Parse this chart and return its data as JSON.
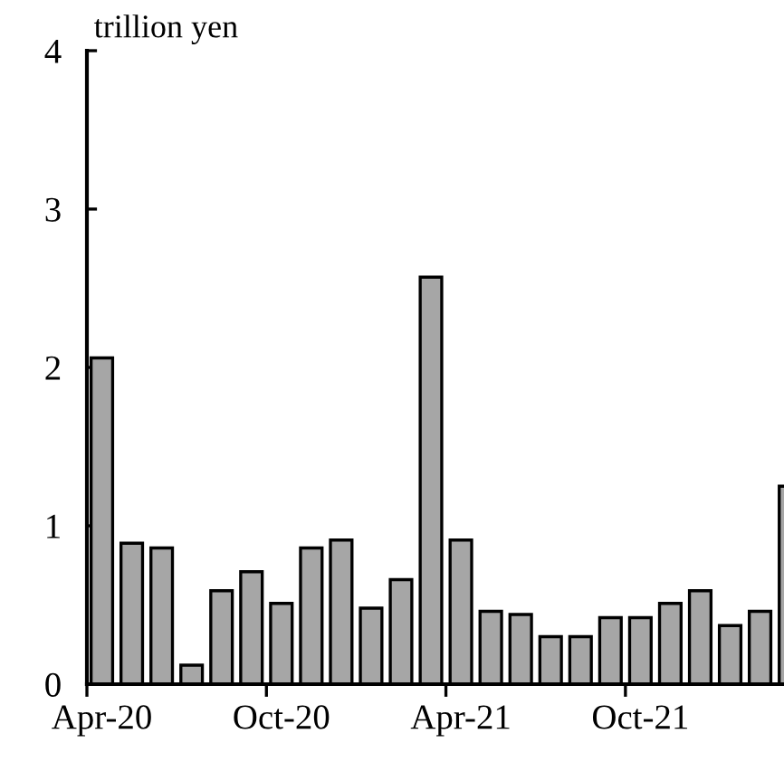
{
  "chart_data": {
    "type": "bar",
    "ylabel": "trillion yen",
    "categories": [
      "Apr-20",
      null,
      null,
      null,
      null,
      null,
      "Oct-20",
      null,
      null,
      null,
      null,
      null,
      "Apr-21",
      null,
      null,
      null,
      null,
      null,
      "Oct-21",
      null,
      null,
      null,
      null,
      null
    ],
    "values": [
      2.06,
      0.89,
      0.86,
      0.12,
      0.59,
      0.71,
      0.51,
      0.86,
      0.91,
      0.48,
      0.66,
      2.57,
      0.91,
      0.46,
      0.44,
      0.3,
      0.3,
      0.42,
      0.42,
      0.51,
      0.59,
      0.37,
      0.46,
      1.25
    ],
    "color": "#a6a6a6",
    "ylim": [
      0,
      4
    ],
    "yticks": [
      0,
      1,
      2,
      3,
      4
    ],
    "grid": false
  }
}
